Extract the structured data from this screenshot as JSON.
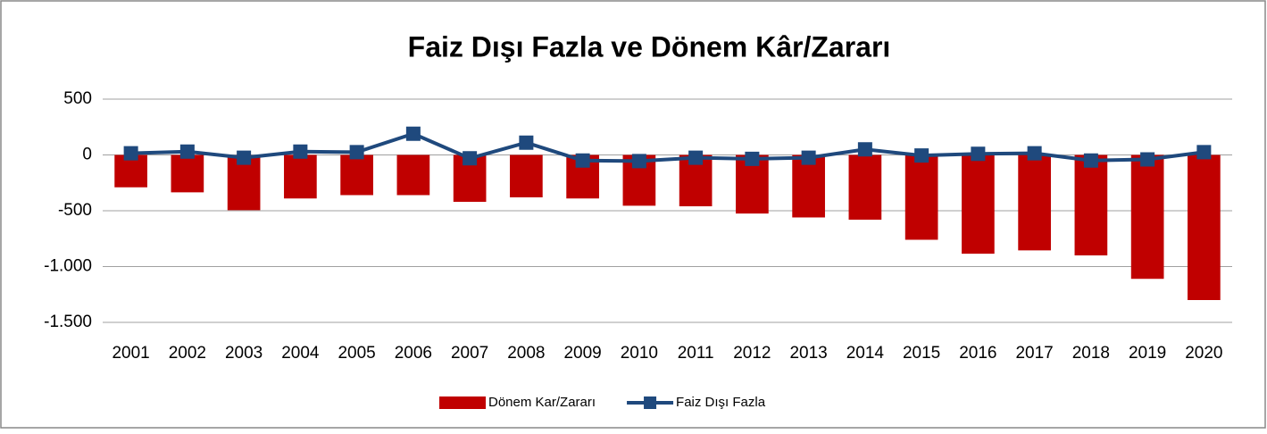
{
  "chart_data": {
    "type": "bar-line",
    "title": "Faiz Dışı Fazla ve Dönem Kâr/Zararı",
    "categories": [
      "2001",
      "2002",
      "2003",
      "2004",
      "2005",
      "2006",
      "2007",
      "2008",
      "2009",
      "2010",
      "2011",
      "2012",
      "2013",
      "2014",
      "2015",
      "2016",
      "2017",
      "2018",
      "2019",
      "2020"
    ],
    "series": [
      {
        "name": "Dönem Kar/Zararı",
        "type": "bar",
        "color": "#c00000",
        "values": [
          -290,
          -335,
          -495,
          -390,
          -360,
          -360,
          -420,
          -380,
          -390,
          -455,
          -460,
          -525,
          -560,
          -580,
          -760,
          -885,
          -855,
          -900,
          -1110,
          -1300
        ]
      },
      {
        "name": "Faiz Dışı Fazla",
        "type": "line",
        "color": "#1f497d",
        "values": [
          15,
          30,
          -25,
          30,
          25,
          190,
          -30,
          110,
          -50,
          -55,
          -25,
          -35,
          -25,
          50,
          -5,
          10,
          15,
          -50,
          -40,
          25
        ]
      }
    ],
    "ylim": [
      -1500,
      500
    ],
    "yticks": [
      {
        "value": -1500,
        "label": "-1.500"
      },
      {
        "value": -1000,
        "label": "-1.000"
      },
      -500,
      0,
      500
    ],
    "grid": true,
    "legend": "bottom"
  }
}
